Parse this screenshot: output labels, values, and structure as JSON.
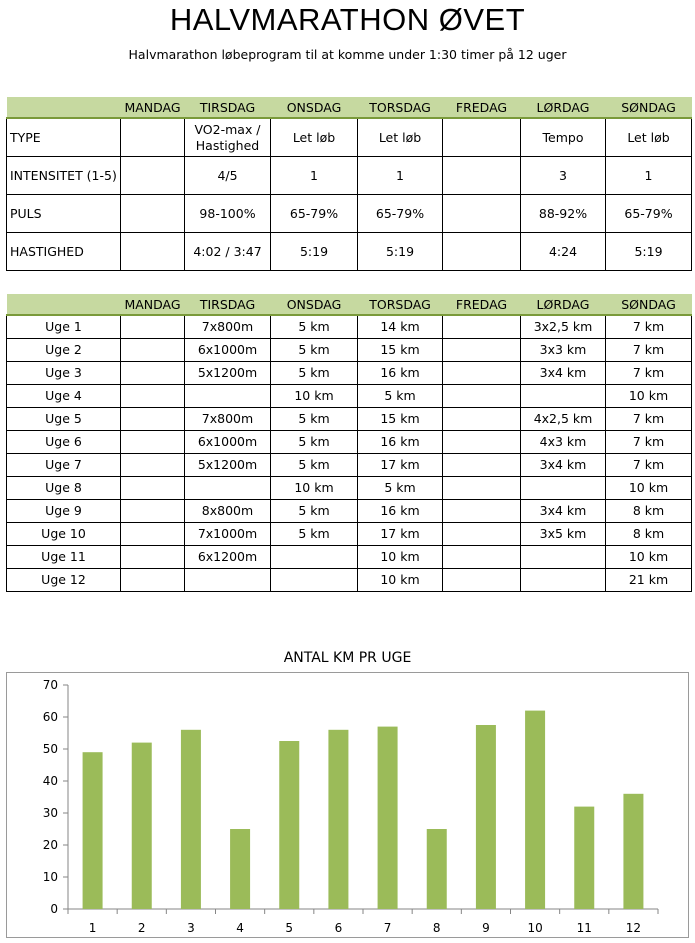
{
  "title": "HALVMARATHON ØVET",
  "subtitle": "Halvmarathon løbeprogram til at komme under 1:30 timer på 12 uger",
  "days": [
    "MANDAG",
    "TIRSDAG",
    "ONSDAG",
    "TORSDAG",
    "FREDAG",
    "LØRDAG",
    "SØNDAG"
  ],
  "intensity_table": {
    "rows": [
      {
        "label": "TYPE",
        "cells": [
          "",
          "VO2-max / Hastighed",
          "Let løb",
          "Let løb",
          "",
          "Tempo",
          "Let løb"
        ]
      },
      {
        "label": "INTENSITET (1-5)",
        "cells": [
          "",
          "4/5",
          "1",
          "1",
          "",
          "3",
          "1"
        ]
      },
      {
        "label": "PULS",
        "cells": [
          "",
          "98-100%",
          "65-79%",
          "65-79%",
          "",
          "88-92%",
          "65-79%"
        ]
      },
      {
        "label": "HASTIGHED",
        "cells": [
          "",
          "4:02 / 3:47",
          "5:19",
          "5:19",
          "",
          "4:24",
          "5:19"
        ]
      }
    ]
  },
  "weeks_table": {
    "rows": [
      {
        "label": "Uge 1",
        "cells": [
          "",
          "7x800m",
          "5 km",
          "14 km",
          "",
          "3x2,5 km",
          "7 km"
        ]
      },
      {
        "label": "Uge 2",
        "cells": [
          "",
          "6x1000m",
          "5 km",
          "15 km",
          "",
          "3x3 km",
          "7 km"
        ]
      },
      {
        "label": "Uge 3",
        "cells": [
          "",
          "5x1200m",
          "5 km",
          "16 km",
          "",
          "3x4 km",
          "7 km"
        ]
      },
      {
        "label": "Uge 4",
        "cells": [
          "",
          "",
          "10 km",
          "5 km",
          "",
          "",
          "10 km"
        ]
      },
      {
        "label": "Uge 5",
        "cells": [
          "",
          "7x800m",
          "5 km",
          "15 km",
          "",
          "4x2,5 km",
          "7 km"
        ]
      },
      {
        "label": "Uge 6",
        "cells": [
          "",
          "6x1000m",
          "5 km",
          "16 km",
          "",
          "4x3 km",
          "7 km"
        ]
      },
      {
        "label": "Uge 7",
        "cells": [
          "",
          "5x1200m",
          "5 km",
          "17 km",
          "",
          "3x4 km",
          "7 km"
        ]
      },
      {
        "label": "Uge 8",
        "cells": [
          "",
          "",
          "10 km",
          "5 km",
          "",
          "",
          "10 km"
        ]
      },
      {
        "label": "Uge 9",
        "cells": [
          "",
          "8x800m",
          "5 km",
          "16 km",
          "",
          "3x4 km",
          "8 km"
        ]
      },
      {
        "label": "Uge 10",
        "cells": [
          "",
          "7x1000m",
          "5 km",
          "17 km",
          "",
          "3x5 km",
          "8 km"
        ]
      },
      {
        "label": "Uge 11",
        "cells": [
          "",
          "6x1200m",
          "",
          "10 km",
          "",
          "",
          "10 km"
        ]
      },
      {
        "label": "Uge 12",
        "cells": [
          "",
          "",
          "",
          "10 km",
          "",
          "",
          "21 km"
        ]
      }
    ]
  },
  "chart_data": {
    "type": "bar",
    "title": "ANTAL KM PR UGE",
    "xlabel": "",
    "ylabel": "",
    "categories": [
      "1",
      "2",
      "3",
      "4",
      "5",
      "6",
      "7",
      "8",
      "9",
      "10",
      "11",
      "12"
    ],
    "values": [
      49,
      52,
      56,
      25,
      52.5,
      56,
      57,
      25,
      57.5,
      62,
      32,
      36
    ],
    "ylim": [
      0,
      70
    ],
    "yticks": [
      0,
      10,
      20,
      30,
      40,
      50,
      60,
      70
    ],
    "bar_color": "#9bbb59",
    "grid": false
  },
  "colors": {
    "header_fill": "#c6d9a0",
    "header_rule": "#7a9a3a"
  }
}
